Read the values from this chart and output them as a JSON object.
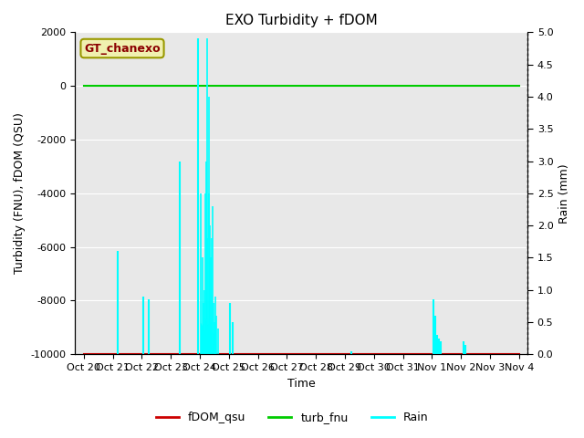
{
  "title": "EXO Turbidity + fDOM",
  "ylabel_left": "Turbidity (FNU), fDOM (QSU)",
  "ylabel_right": "Rain (mm)",
  "xlabel": "Time",
  "ylim_left": [
    -10000,
    2000
  ],
  "ylim_right": [
    0.0,
    5.0
  ],
  "x_tick_labels": [
    "Oct 20",
    "Oct 21",
    "Oct 22",
    "Oct 23",
    "Oct 24",
    "Oct 25",
    "Oct 26",
    "Oct 27",
    "Oct 28",
    "Oct 29",
    "Oct 30",
    "Oct 31",
    "Nov 1",
    "Nov 2",
    "Nov 3",
    "Nov 4"
  ],
  "background_color": "#e8e8e8",
  "annotation_text": "GT_chanexo",
  "annotation_color": "#8b0000",
  "annotation_bg": "#f0f0b0",
  "annotation_edge": "#999900",
  "fdom_color": "#cc0000",
  "turb_color": "#00cc00",
  "rain_color": "#00ffff",
  "fdom_value": -10000,
  "turb_value": 0,
  "grid_color": "white",
  "title_fontsize": 11,
  "label_fontsize": 9,
  "tick_fontsize": 8
}
